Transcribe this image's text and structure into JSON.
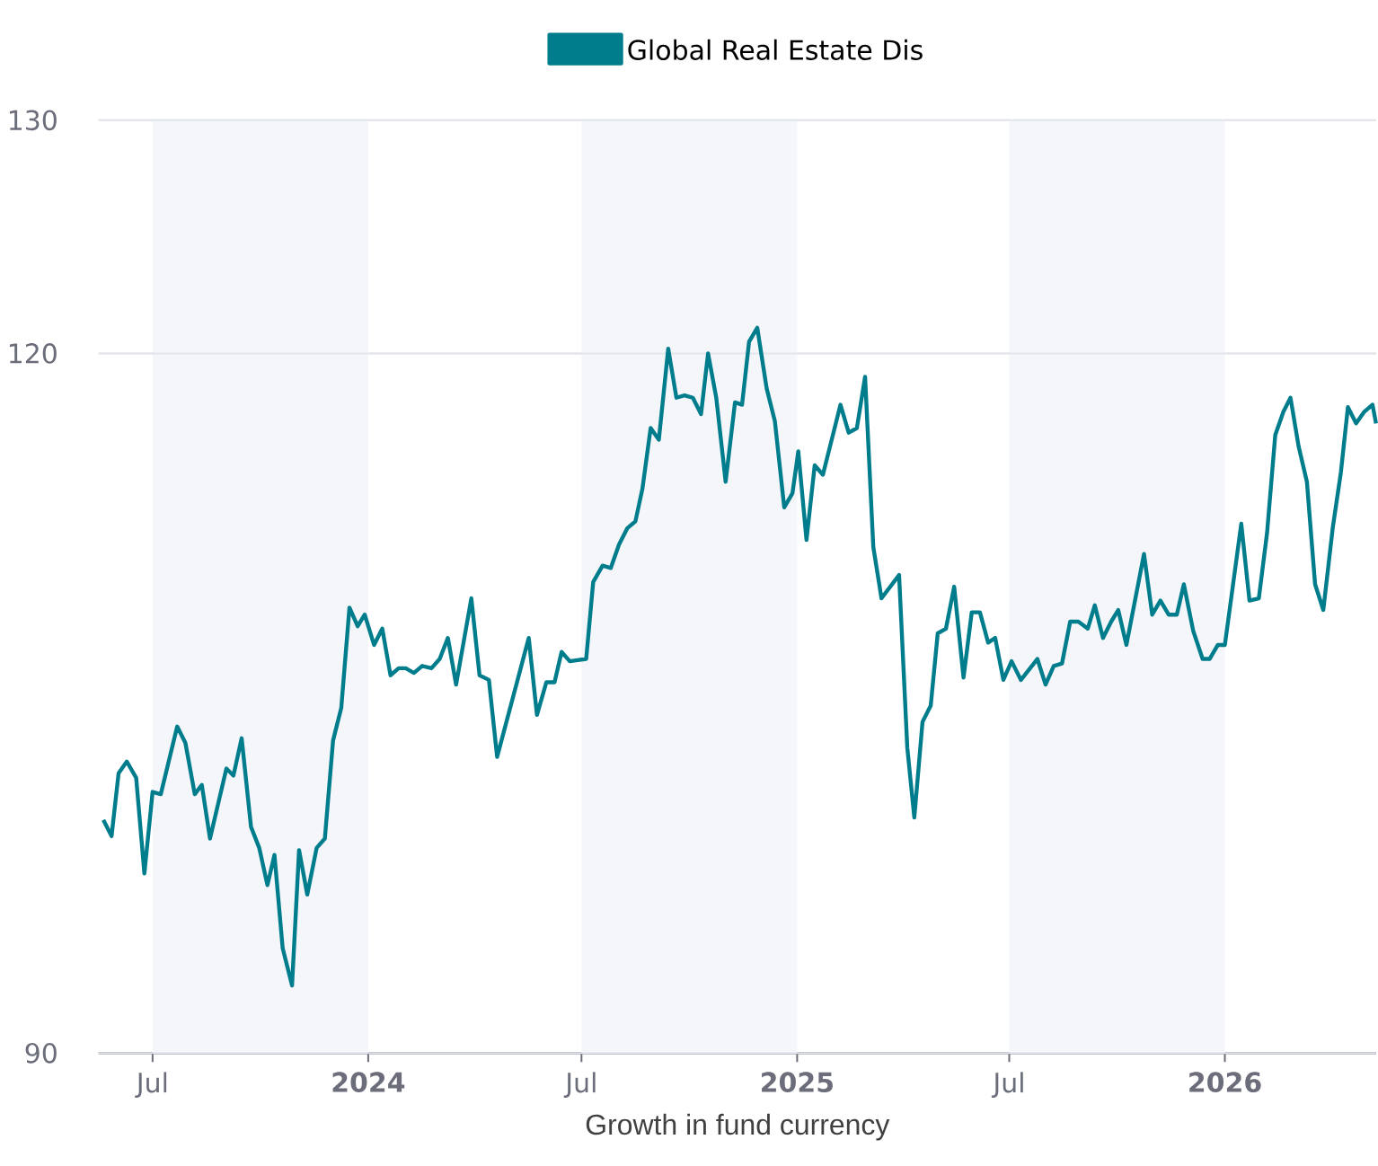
{
  "chart_data": {
    "type": "line",
    "xlabel": "Growth in fund currency",
    "legend": "top",
    "grid": "y",
    "line_style": "solid",
    "marker": "none",
    "xlim": [
      "2023-05-16",
      "2026-05-10"
    ],
    "ylim": [
      90,
      130
    ],
    "yticks": [
      90,
      120,
      130
    ],
    "xticks": [
      {
        "value": "2023-07-01",
        "label": "Jul"
      },
      {
        "value": "2024-01-01",
        "label": "2024"
      },
      {
        "value": "2024-07-01",
        "label": "Jul"
      },
      {
        "value": "2025-01-01",
        "label": "2025"
      },
      {
        "value": "2025-07-01",
        "label": "Jul"
      },
      {
        "value": "2026-01-01",
        "label": "2026"
      }
    ],
    "bands": [
      {
        "axis": "x",
        "from": "2023-07-01",
        "to": "2024-01-01",
        "color": "#f4f6fa"
      },
      {
        "axis": "x",
        "from": "2024-07-01",
        "to": "2025-01-01",
        "color": "#f4f6fa"
      },
      {
        "axis": "x",
        "from": "2025-07-01",
        "to": "2026-01-01",
        "color": "#f4f6fa"
      }
    ],
    "series": [
      {
        "name": "Global Real Estate Dis",
        "color": "#007d8c",
        "x": [
          "2023-05-20",
          "2023-05-27",
          "2023-06-02",
          "2023-06-09",
          "2023-06-17",
          "2023-06-24",
          "2023-07-01",
          "2023-07-08",
          "2023-07-22",
          "2023-07-29",
          "2023-08-06",
          "2023-08-12",
          "2023-08-19",
          "2023-09-02",
          "2023-09-08",
          "2023-09-15",
          "2023-09-23",
          "2023-09-30",
          "2023-10-07",
          "2023-10-13",
          "2023-10-20",
          "2023-10-28",
          "2023-11-03",
          "2023-11-10",
          "2023-11-18",
          "2023-11-25",
          "2023-12-02",
          "2023-12-09",
          "2023-12-16",
          "2023-12-23",
          "2023-12-29",
          "2024-01-06",
          "2024-01-13",
          "2024-01-20",
          "2024-01-27",
          "2024-02-02",
          "2024-02-09",
          "2024-02-16",
          "2024-02-24",
          "2024-03-02",
          "2024-03-09",
          "2024-03-16",
          "2024-03-29",
          "2024-04-05",
          "2024-04-13",
          "2024-04-20",
          "2024-05-17",
          "2024-05-24",
          "2024-06-01",
          "2024-06-08",
          "2024-06-14",
          "2024-06-21",
          "2024-07-05",
          "2024-07-11",
          "2024-07-19",
          "2024-07-26",
          "2024-08-02",
          "2024-08-09",
          "2024-08-16",
          "2024-08-22",
          "2024-08-29",
          "2024-09-05",
          "2024-09-13",
          "2024-09-20",
          "2024-09-27",
          "2024-10-04",
          "2024-10-11",
          "2024-10-17",
          "2024-10-24",
          "2024-11-01",
          "2024-11-09",
          "2024-11-15",
          "2024-11-21",
          "2024-11-28",
          "2024-12-06",
          "2024-12-13",
          "2024-12-21",
          "2024-12-28",
          "2025-01-02",
          "2025-01-09",
          "2025-01-16",
          "2025-01-23",
          "2025-02-01",
          "2025-02-07",
          "2025-02-14",
          "2025-02-21",
          "2025-02-28",
          "2025-03-07",
          "2025-03-14",
          "2025-03-29",
          "2025-04-05",
          "2025-04-11",
          "2025-04-18",
          "2025-04-25",
          "2025-05-01",
          "2025-05-08",
          "2025-05-15",
          "2025-05-23",
          "2025-05-30",
          "2025-06-06",
          "2025-06-13",
          "2025-06-19",
          "2025-06-26",
          "2025-07-03",
          "2025-07-11",
          "2025-07-25",
          "2025-08-01",
          "2025-08-08",
          "2025-08-15",
          "2025-08-22",
          "2025-08-29",
          "2025-09-06",
          "2025-09-12",
          "2025-09-19",
          "2025-09-26",
          "2025-10-02",
          "2025-10-09",
          "2025-10-24",
          "2025-10-31",
          "2025-11-07",
          "2025-11-14",
          "2025-11-21",
          "2025-11-27",
          "2025-12-05",
          "2025-12-13",
          "2025-12-19",
          "2025-12-26",
          "2026-01-01",
          "2026-01-15",
          "2026-01-22",
          "2026-01-30",
          "2026-02-06",
          "2026-02-13",
          "2026-02-20",
          "2026-02-26",
          "2026-03-05",
          "2026-03-12",
          "2026-03-19",
          "2026-03-26",
          "2026-04-03",
          "2026-04-10",
          "2026-04-16",
          "2026-04-23",
          "2026-04-30",
          "2026-05-07",
          "2026-05-10"
        ],
        "values": [
          100.0,
          99.3,
          102.0,
          102.5,
          101.8,
          97.7,
          101.2,
          101.1,
          104.0,
          103.3,
          101.1,
          101.5,
          99.2,
          102.2,
          101.9,
          103.5,
          99.7,
          98.8,
          97.2,
          98.5,
          94.5,
          92.9,
          98.7,
          96.8,
          98.8,
          99.2,
          103.4,
          104.8,
          109.1,
          108.3,
          108.8,
          107.5,
          108.2,
          106.2,
          106.5,
          106.5,
          106.3,
          106.6,
          106.5,
          106.9,
          107.8,
          105.8,
          109.5,
          106.2,
          106.0,
          102.7,
          107.8,
          104.5,
          105.9,
          105.9,
          107.2,
          106.8,
          106.9,
          110.2,
          110.9,
          110.8,
          111.8,
          112.5,
          112.8,
          114.2,
          116.8,
          116.3,
          120.2,
          118.1,
          118.2,
          118.1,
          117.4,
          120.0,
          118.1,
          114.5,
          117.9,
          117.8,
          120.5,
          121.1,
          118.5,
          117.1,
          113.4,
          114.0,
          115.8,
          112.0,
          115.2,
          114.8,
          116.6,
          117.8,
          116.6,
          116.8,
          119.0,
          111.7,
          109.5,
          110.5,
          103.1,
          100.1,
          104.2,
          104.9,
          108.0,
          108.2,
          110.0,
          106.1,
          108.9,
          108.9,
          107.6,
          107.8,
          106.0,
          106.8,
          106.0,
          106.9,
          105.8,
          106.6,
          106.7,
          108.5,
          108.5,
          108.2,
          109.2,
          107.8,
          108.5,
          109.0,
          107.5,
          111.4,
          108.8,
          109.4,
          108.8,
          108.8,
          110.1,
          108.1,
          106.9,
          106.9,
          107.5,
          107.5,
          112.7,
          109.4,
          109.5,
          112.3,
          116.5,
          117.5,
          118.1,
          116.0,
          114.5,
          110.1,
          109.0,
          112.5,
          114.9,
          117.7,
          117.0,
          117.5,
          117.8,
          117.0
        ]
      }
    ]
  }
}
